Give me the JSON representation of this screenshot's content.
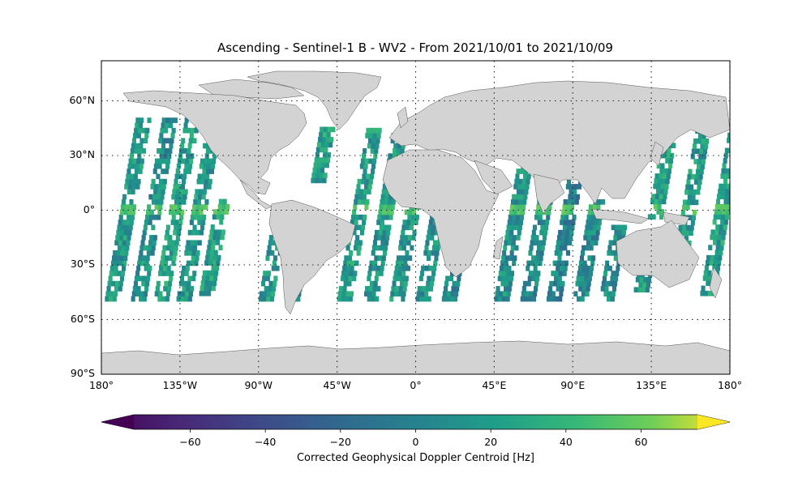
{
  "title": "Ascending - Sentinel-1 B - WV2 - From 2021/10/01 to 2021/10/09",
  "map": {
    "projection": "PlateCarree",
    "extent_lon": [
      -180,
      180
    ],
    "extent_lat": [
      -90,
      90
    ],
    "land_color": "#d3d3d3",
    "coast_color": "#555555",
    "grid": "dotted",
    "lat_ticks": [
      {
        "value": 60,
        "label": "60°N"
      },
      {
        "value": 30,
        "label": "30°N"
      },
      {
        "value": 0,
        "label": "0°"
      },
      {
        "value": -30,
        "label": "30°S"
      },
      {
        "value": -60,
        "label": "60°S"
      },
      {
        "value": -90,
        "label": "90°S"
      }
    ],
    "lon_ticks": [
      {
        "value": -180,
        "label": "180°"
      },
      {
        "value": -135,
        "label": "135°W"
      },
      {
        "value": -90,
        "label": "90°W"
      },
      {
        "value": -45,
        "label": "45°W"
      },
      {
        "value": 0,
        "label": "0°"
      },
      {
        "value": 45,
        "label": "45°E"
      },
      {
        "value": 90,
        "label": "90°E"
      },
      {
        "value": 135,
        "label": "135°E"
      },
      {
        "value": 180,
        "label": "180°"
      }
    ]
  },
  "chart_data": {
    "type": "heatmap",
    "title": "Ascending - Sentinel-1 B - WV2 - From 2021/10/01 to 2021/10/09",
    "variable": "Corrected Geophysical Doppler Centroid [Hz]",
    "colormap": "viridis",
    "vmin": -75,
    "vmax": 75,
    "colorbar_extend": "both",
    "colorbar_ticks": [
      -60,
      -40,
      -20,
      0,
      20,
      40,
      60
    ],
    "lat_coverage": [
      -50,
      50
    ],
    "swaths": [
      {
        "lon_start": -178,
        "lat_range": [
          -50,
          50
        ],
        "value_mean": 15
      },
      {
        "lon_start": -163,
        "lat_range": [
          -50,
          50
        ],
        "value_mean": 10
      },
      {
        "lon_start": -150,
        "lat_range": [
          -50,
          50
        ],
        "value_mean": 20
      },
      {
        "lon_start": -137,
        "lat_range": [
          -50,
          50
        ],
        "value_mean": 15
      },
      {
        "lon_start": -124,
        "lat_range": [
          -47,
          5
        ],
        "value_mean": 20
      },
      {
        "lon_start": -90,
        "lat_range": [
          -50,
          -5
        ],
        "value_mean": 15
      },
      {
        "lon_start": -75,
        "lat_range": [
          -50,
          -25
        ],
        "value_mean": 5
      },
      {
        "lon_start": -60,
        "lat_range": [
          15,
          45
        ],
        "value_mean": 20
      },
      {
        "lon_start": -45,
        "lat_range": [
          -50,
          45
        ],
        "value_mean": 18
      },
      {
        "lon_start": -30,
        "lat_range": [
          -50,
          40
        ],
        "value_mean": 12
      },
      {
        "lon_start": -15,
        "lat_range": [
          -50,
          10
        ],
        "value_mean": 15
      },
      {
        "lon_start": 0,
        "lat_range": [
          -50,
          -5
        ],
        "value_mean": 10
      },
      {
        "lon_start": 15,
        "lat_range": [
          -50,
          -35
        ],
        "value_mean": 5
      },
      {
        "lon_start": 45,
        "lat_range": [
          -50,
          25
        ],
        "value_mean": 10
      },
      {
        "lon_start": 60,
        "lat_range": [
          -50,
          20
        ],
        "value_mean": 5
      },
      {
        "lon_start": 75,
        "lat_range": [
          -50,
          20
        ],
        "value_mean": 0
      },
      {
        "lon_start": 90,
        "lat_range": [
          -50,
          5
        ],
        "value_mean": 5
      },
      {
        "lon_start": 105,
        "lat_range": [
          -50,
          -10
        ],
        "value_mean": 10
      },
      {
        "lon_start": 125,
        "lat_range": [
          -45,
          -30
        ],
        "value_mean": 15
      },
      {
        "lon_start": 133,
        "lat_range": [
          -5,
          40
        ],
        "value_mean": 20
      },
      {
        "lon_start": 148,
        "lat_range": [
          -25,
          50
        ],
        "value_mean": 15
      },
      {
        "lon_start": 163,
        "lat_range": [
          -47,
          45
        ],
        "value_mean": 20
      }
    ],
    "note_band": {
      "lat_range": [
        -3,
        3
      ],
      "value_mean": 45
    }
  },
  "colorbar": {
    "label": "Corrected Geophysical Doppler Centroid [Hz]",
    "tick_labels": [
      "−60",
      "−40",
      "−20",
      "0",
      "20",
      "40",
      "60"
    ]
  }
}
